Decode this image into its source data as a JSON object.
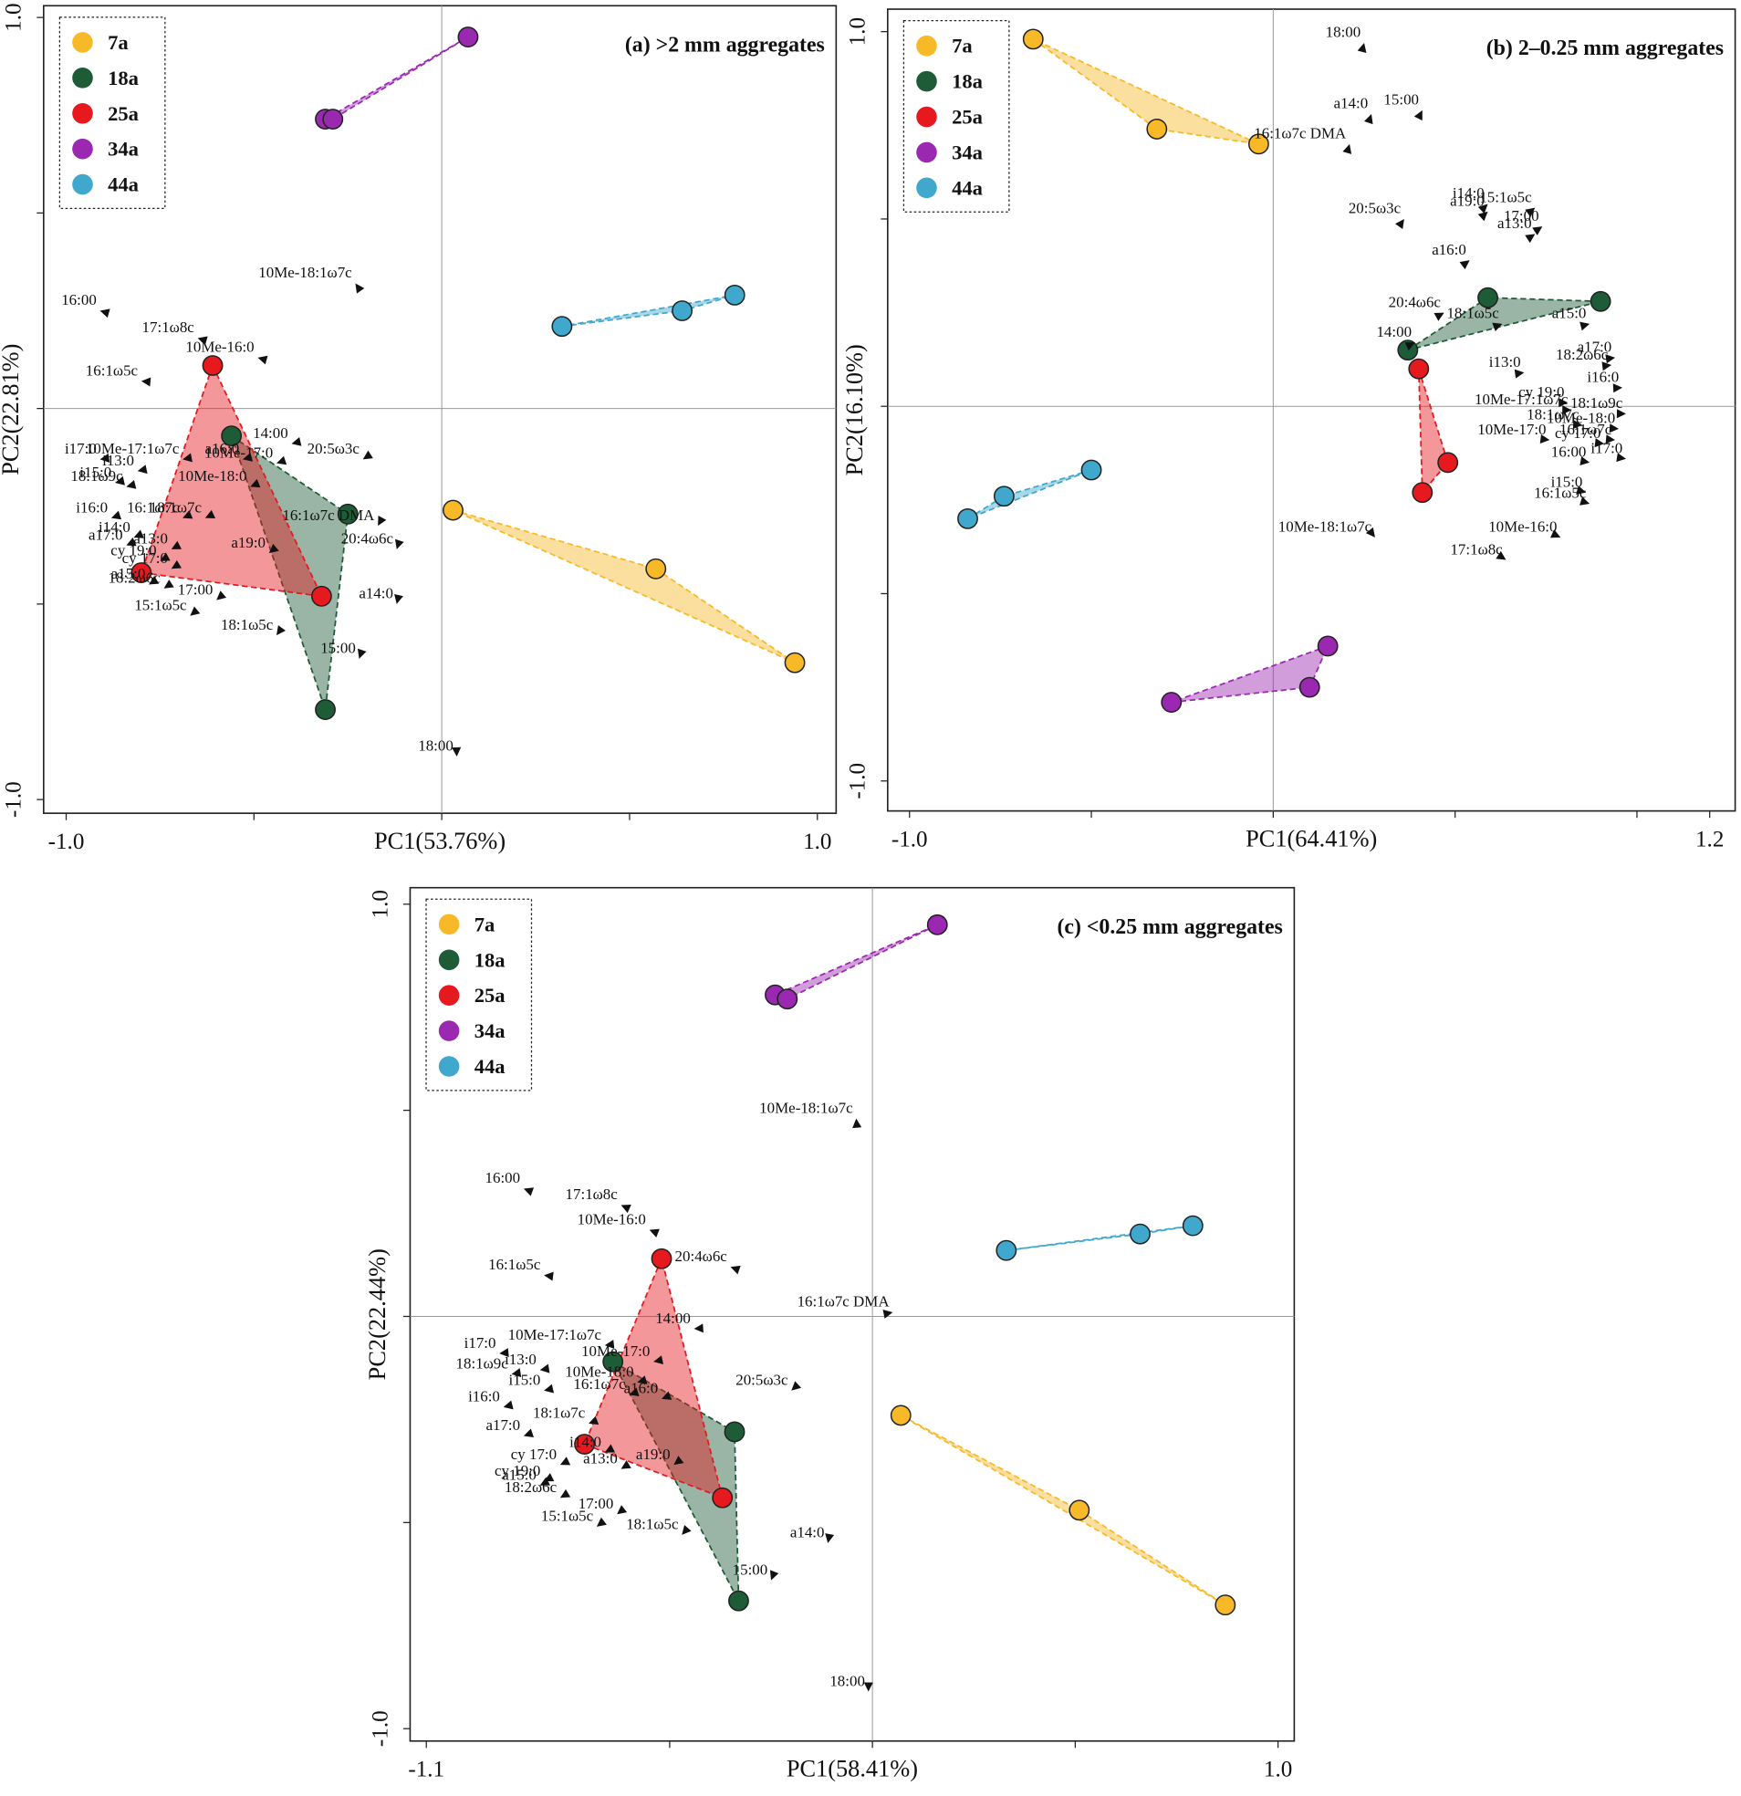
{
  "chart_data": [
    {
      "type": "scatter",
      "title": "(a) >2 mm aggregates",
      "xlabel": "PC1(53.76%)",
      "ylabel": "PC2(22.81%)",
      "xlim": [
        -1.06,
        1.05
      ],
      "ylim": [
        -1.035,
        1.03
      ],
      "xticks": [
        {
          "value": -1,
          "label": "-1.0"
        },
        {
          "value": 1,
          "label": "1.0"
        }
      ],
      "minor_xticks": [
        -0.5,
        0,
        0.5
      ],
      "yticks": [
        {
          "value": -1,
          "label": "-1.0"
        },
        {
          "value": 1,
          "label": "1.0"
        }
      ],
      "minor_yticks": [
        -0.5,
        0,
        0.5
      ],
      "zero_lines": true,
      "legend": "upper left",
      "series": [
        {
          "name": "7a",
          "color": "#f7b928",
          "x": [
            0.03,
            0.57,
            0.94
          ],
          "values": [
            -0.26,
            -0.41,
            -0.65
          ]
        },
        {
          "name": "18a",
          "color": "#1e5b37",
          "x": [
            -0.56,
            -0.25,
            -0.31
          ],
          "values": [
            -0.07,
            -0.27,
            -0.77
          ]
        },
        {
          "name": "25a",
          "color": "#e5191e",
          "x": [
            -0.61,
            -0.8,
            -0.32
          ],
          "values": [
            0.11,
            -0.42,
            -0.48
          ]
        },
        {
          "name": "34a",
          "color": "#9a28b0",
          "x": [
            -0.31,
            -0.29,
            0.07
          ],
          "values": [
            0.74,
            0.74,
            0.95
          ]
        },
        {
          "name": "44a",
          "color": "#3fa8cc",
          "x": [
            0.32,
            0.64,
            0.78
          ],
          "values": [
            0.21,
            0.25,
            0.29
          ]
        }
      ],
      "loadings": {
        "labels": [
          "10Me-18:1ω7c",
          "16:00",
          "17:1ω8c",
          "10Me-16:0",
          "16:1ω5c",
          "14:00",
          "10Me-17:1ω7c",
          "a16:0",
          "10Me-17:0",
          "20:5ω3c",
          "i17:0",
          "i13:0",
          "i15:0",
          "10Me-18:0",
          "18:1ω9c",
          "18:1ω7c",
          "16:1ω7c",
          "i16:0",
          "16:1ω7c DMA",
          "i14:0",
          "a17:0",
          "a13:0",
          "a19:0",
          "20:4ω6c",
          "cy 19:0",
          "cy 17:0",
          "a15:0",
          "18:2ω6c",
          "17:00",
          "15:1ω5c",
          "a14:0",
          "18:1ω5c",
          "15:00",
          "18:00"
        ],
        "x": [
          -0.23,
          -0.91,
          -0.65,
          -0.49,
          -0.8,
          -0.4,
          -0.69,
          -0.53,
          -0.44,
          -0.21,
          -0.91,
          -0.81,
          -0.87,
          -0.51,
          -0.84,
          -0.63,
          -0.69,
          -0.88,
          -0.17,
          -0.82,
          -0.84,
          -0.72,
          -0.46,
          -0.12,
          -0.75,
          -0.72,
          -0.78,
          -0.74,
          -0.6,
          -0.67,
          -0.12,
          -0.44,
          -0.22,
          0.04
        ],
        "y": [
          0.32,
          0.25,
          0.18,
          0.13,
          0.07,
          -0.09,
          -0.13,
          -0.13,
          -0.14,
          -0.13,
          -0.13,
          -0.16,
          -0.19,
          -0.2,
          -0.2,
          -0.28,
          -0.28,
          -0.28,
          -0.3,
          -0.33,
          -0.35,
          -0.36,
          -0.37,
          -0.36,
          -0.39,
          -0.41,
          -0.45,
          -0.46,
          -0.49,
          -0.53,
          -0.5,
          -0.58,
          -0.64,
          -0.89
        ]
      }
    },
    {
      "type": "scatter",
      "title": "(b) 2–0.25 mm aggregates",
      "xlabel": "PC1(64.41%)",
      "ylabel": "PC2(16.10%)",
      "xlim": [
        -1.06,
        1.27
      ],
      "ylim": [
        -1.08,
        1.06
      ],
      "xticks": [
        {
          "value": -1,
          "label": "-1.0"
        },
        1.2
      ],
      "minor_xticks": [
        -0.5,
        0,
        0.5,
        1
      ],
      "yticks": [
        {
          "value": -1,
          "label": "-1.0"
        },
        {
          "value": 1,
          "label": "1.0"
        }
      ],
      "minor_yticks": [
        -0.5,
        0,
        0.5
      ],
      "zero_lines": true,
      "legend": "upper left",
      "series": [
        {
          "name": "7a",
          "color": "#f7b928",
          "x": [
            -0.66,
            -0.32,
            -0.04
          ],
          "values": [
            0.98,
            0.74,
            0.7
          ]
        },
        {
          "name": "18a",
          "color": "#1e5b37",
          "x": [
            0.37,
            0.59,
            0.9
          ],
          "values": [
            0.15,
            0.29,
            0.28
          ]
        },
        {
          "name": "25a",
          "color": "#e5191e",
          "x": [
            0.4,
            0.48,
            0.41
          ],
          "values": [
            0.1,
            -0.15,
            -0.23
          ]
        },
        {
          "name": "34a",
          "color": "#9a28b0",
          "x": [
            -0.28,
            0.1,
            0.15
          ],
          "values": [
            -0.79,
            -0.75,
            -0.64
          ]
        },
        {
          "name": "44a",
          "color": "#3fa8cc",
          "x": [
            -0.84,
            -0.74,
            -0.5
          ],
          "values": [
            -0.3,
            -0.24,
            -0.17
          ]
        }
      ],
      "loadings": {
        "labels": [
          "18:00",
          "a14:0",
          "15:00",
          "16:1ω7c DMA",
          "i14:0",
          "15:1ω5c",
          "a19:0",
          "17:00",
          "20:5ω3c",
          "a13:0",
          "a16:0",
          "20:4ω6c",
          "18:1ω5c",
          "a15:0",
          "14:00",
          "a17:0",
          "18:2ω6c",
          "i13:0",
          "cy 19:0",
          "i16:0",
          "10Me-17:1ω7c",
          "18:1ω9c",
          "18:1ω7c",
          "10Me-18:0",
          "16:1ω7c",
          "10Me-17:0",
          "cy 17:0",
          "i17:0",
          "16:00",
          "i15:0",
          "16:1ω5c",
          "10Me-18:1ω7c",
          "10Me-16:0",
          "17:1ω8c"
        ],
        "x": [
          0.25,
          0.27,
          0.41,
          0.21,
          0.59,
          0.72,
          0.59,
          0.74,
          0.36,
          0.72,
          0.54,
          0.47,
          0.63,
          0.87,
          0.39,
          0.94,
          0.93,
          0.69,
          0.81,
          0.96,
          0.82,
          0.97,
          0.85,
          0.95,
          0.94,
          0.76,
          0.91,
          0.97,
          0.87,
          0.86,
          0.87,
          0.28,
          0.79,
          0.64
        ],
        "y": [
          0.97,
          0.78,
          0.79,
          0.7,
          0.54,
          0.53,
          0.52,
          0.48,
          0.5,
          0.46,
          0.39,
          0.25,
          0.22,
          0.22,
          0.17,
          0.13,
          0.11,
          0.09,
          0.01,
          0.05,
          -0.01,
          -0.02,
          -0.05,
          -0.06,
          -0.09,
          -0.09,
          -0.1,
          -0.14,
          -0.15,
          -0.23,
          -0.26,
          -0.35,
          -0.35,
          -0.41
        ]
      }
    },
    {
      "type": "scatter",
      "title": "(c) <0.25 mm aggregates",
      "xlabel": "PC1(58.41%)",
      "ylabel": "PC2(22.44%)",
      "xlim": [
        -1.14,
        1.04
      ],
      "ylim": [
        -1.03,
        1.04
      ],
      "xticks": [
        {
          "value": -1.1,
          "label": "-1.1"
        },
        {
          "value": 1,
          "label": "1.0"
        }
      ],
      "minor_xticks": [
        -0.5,
        0,
        0.5
      ],
      "yticks": [
        {
          "value": -1,
          "label": "-1.0"
        },
        {
          "value": 1,
          "label": "1.0"
        }
      ],
      "minor_yticks": [
        -0.5,
        0,
        0.5
      ],
      "zero_lines": true,
      "legend": "upper left",
      "series": [
        {
          "name": "7a",
          "color": "#f7b928",
          "x": [
            0.07,
            0.51,
            0.87
          ],
          "values": [
            -0.24,
            -0.47,
            -0.7
          ]
        },
        {
          "name": "18a",
          "color": "#1e5b37",
          "x": [
            -0.64,
            -0.34,
            -0.33
          ],
          "values": [
            -0.11,
            -0.28,
            -0.69
          ]
        },
        {
          "name": "25a",
          "color": "#e5191e",
          "x": [
            -0.52,
            -0.71,
            -0.37
          ],
          "values": [
            0.14,
            -0.31,
            -0.44
          ]
        },
        {
          "name": "34a",
          "color": "#9a28b0",
          "x": [
            -0.24,
            -0.21,
            0.16
          ],
          "values": [
            0.78,
            0.77,
            0.95
          ]
        },
        {
          "name": "44a",
          "color": "#3fa8cc",
          "x": [
            0.33,
            0.66,
            0.79
          ],
          "values": [
            0.16,
            0.2,
            0.22
          ]
        }
      ],
      "loadings": {
        "labels": [
          "10Me-18:1ω7c",
          "16:00",
          "17:1ω8c",
          "10Me-16:0",
          "20:4ω6c",
          "16:1ω5c",
          "16:1ω7c DMA",
          "14:00",
          "10Me-17:1ω7c",
          "10Me-17:0",
          "i17:0",
          "18:1ω9c",
          "i13:0",
          "10Me-18:0",
          "i15:0",
          "20:5ω3c",
          "16:1ω7c",
          "a16:0",
          "i16:0",
          "18:1ω7c",
          "a17:0",
          "i14:0",
          "cy 17:0",
          "cy 19:0",
          "a19:0",
          "a13:0",
          "a15:0",
          "18:2ω6c",
          "17:00",
          "15:1ω5c",
          "18:1ω5c",
          "a14:0",
          "15:00",
          "18:00"
        ],
        "x": [
          -0.04,
          -0.86,
          -0.62,
          -0.55,
          -0.35,
          -0.81,
          0.05,
          -0.44,
          -0.66,
          -0.54,
          -0.92,
          -0.89,
          -0.82,
          -0.58,
          -0.81,
          -0.2,
          -0.6,
          -0.52,
          -0.91,
          -0.7,
          -0.86,
          -0.66,
          -0.77,
          -0.81,
          -0.49,
          -0.62,
          -0.82,
          -0.77,
          -0.63,
          -0.68,
          -0.47,
          -0.11,
          -0.25,
          -0.01
        ],
        "y": [
          0.48,
          0.31,
          0.27,
          0.21,
          0.12,
          0.1,
          0.01,
          -0.03,
          -0.07,
          -0.11,
          -0.09,
          -0.14,
          -0.13,
          -0.16,
          -0.18,
          -0.18,
          -0.19,
          -0.2,
          -0.22,
          -0.26,
          -0.29,
          -0.33,
          -0.36,
          -0.4,
          -0.36,
          -0.37,
          -0.41,
          -0.44,
          -0.48,
          -0.51,
          -0.53,
          -0.55,
          -0.64,
          -0.91
        ]
      }
    }
  ]
}
